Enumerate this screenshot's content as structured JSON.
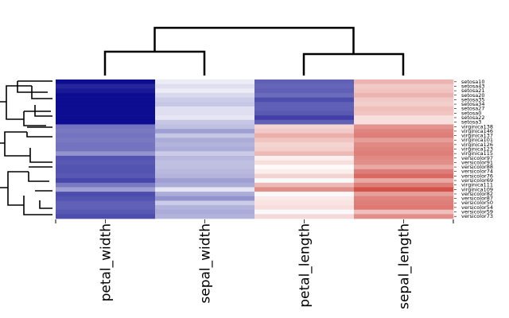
{
  "chart_data": {
    "type": "heatmap",
    "columns": [
      "petal_width",
      "sepal_width",
      "petal_length",
      "sepal_length"
    ],
    "rows": [
      "setosa10",
      "setosa43",
      "setosa21",
      "setosa20",
      "setosa35",
      "setosa34",
      "setosa27",
      "setosa0",
      "setosa22",
      "setosa3",
      "virginica138",
      "virginica146",
      "virginica137",
      "virginica101",
      "virginica126",
      "virginica123",
      "virginica115",
      "versicolor97",
      "versicolor91",
      "versicolor88",
      "versicolor74",
      "versicolor76",
      "versicolor69",
      "virginica111",
      "virginica109",
      "versicolor82",
      "versicolor87",
      "versicolor50",
      "versicolor54",
      "versicolor59",
      "versicolor73"
    ],
    "values": [
      [
        0.2,
        3.7,
        1.5,
        5.4
      ],
      [
        0.6,
        3.5,
        1.6,
        5.0
      ],
      [
        0.4,
        3.7,
        1.5,
        5.1
      ],
      [
        0.2,
        3.4,
        1.7,
        5.4
      ],
      [
        0.2,
        3.2,
        1.2,
        5.0
      ],
      [
        0.2,
        3.1,
        1.5,
        4.9
      ],
      [
        0.2,
        3.5,
        1.5,
        5.2
      ],
      [
        0.2,
        3.5,
        1.4,
        5.1
      ],
      [
        0.2,
        3.6,
        1.0,
        4.6
      ],
      [
        0.2,
        3.1,
        1.5,
        4.6
      ],
      [
        1.8,
        3.0,
        4.8,
        6.0
      ],
      [
        1.9,
        2.5,
        5.0,
        6.3
      ],
      [
        1.8,
        3.1,
        5.5,
        6.4
      ],
      [
        1.9,
        2.7,
        5.1,
        5.8
      ],
      [
        1.8,
        2.8,
        4.8,
        6.2
      ],
      [
        1.8,
        2.7,
        4.9,
        6.3
      ],
      [
        2.3,
        3.2,
        5.3,
        6.4
      ],
      [
        1.3,
        2.9,
        4.3,
        6.2
      ],
      [
        1.4,
        3.0,
        4.6,
        6.1
      ],
      [
        1.3,
        3.0,
        4.1,
        5.6
      ],
      [
        1.3,
        2.9,
        4.3,
        6.4
      ],
      [
        1.4,
        2.8,
        4.8,
        6.8
      ],
      [
        1.1,
        2.5,
        3.9,
        5.6
      ],
      [
        1.9,
        2.7,
        5.3,
        6.4
      ],
      [
        2.5,
        3.6,
        6.1,
        7.2
      ],
      [
        1.2,
        2.7,
        3.9,
        5.8
      ],
      [
        1.3,
        2.3,
        4.4,
        6.3
      ],
      [
        1.5,
        3.2,
        4.5,
        6.4
      ],
      [
        1.5,
        2.8,
        4.6,
        6.5
      ],
      [
        1.4,
        2.7,
        3.9,
        5.2
      ],
      [
        1.2,
        2.8,
        4.7,
        6.1
      ]
    ],
    "vlim": [
      0,
      8
    ],
    "colors": {
      "low": "#00008b",
      "mid": "#ffffff",
      "high": "#c8281e"
    }
  }
}
